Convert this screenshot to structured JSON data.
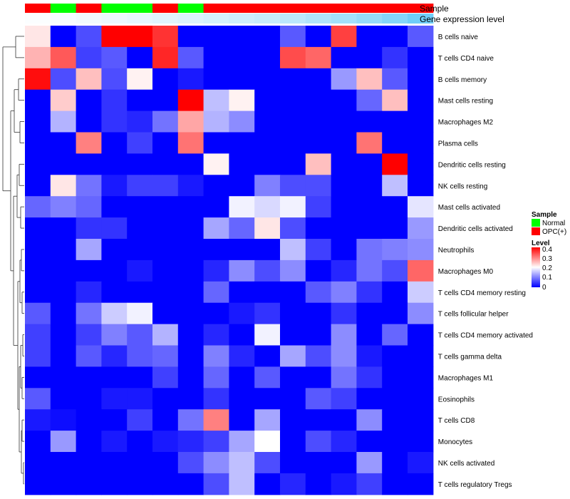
{
  "chart_data": {
    "type": "heatmap",
    "annotation_tracks": [
      "Sample",
      "Gene expression level"
    ],
    "sample_annotation": [
      "OPC(+)",
      "Normal",
      "OPC(+)",
      "Normal",
      "Normal",
      "OPC(+)",
      "Normal",
      "OPC(+)",
      "OPC(+)",
      "OPC(+)",
      "OPC(+)",
      "OPC(+)",
      "OPC(+)",
      "OPC(+)",
      "OPC(+)",
      "OPC(+)"
    ],
    "expression_level": [
      0.02,
      0.05,
      0.08,
      0.11,
      0.14,
      0.17,
      0.2,
      0.24,
      0.28,
      0.32,
      0.38,
      0.45,
      0.52,
      0.6,
      0.7,
      0.82
    ],
    "rows": [
      "B cells naive",
      "T cells CD4 naive",
      "B cells memory",
      "Mast cells resting",
      "Macrophages M2",
      "Plasma cells",
      "Dendritic cells resting",
      "NK cells resting",
      "Mast cells activated",
      "Dendritic cells activated",
      "Neutrophils",
      "Macrophages M0",
      "T cells CD4 memory resting",
      "T cells follicular helper",
      "T cells CD4 memory activated",
      "T cells gamma delta",
      "Macrophages M1",
      "Eosinophils",
      "T cells CD8",
      "Monocytes",
      "NK cells activated",
      "T cells regulatory  Tregs"
    ],
    "values": [
      [
        0.22,
        0.0,
        0.06,
        0.4,
        0.4,
        0.36,
        0.0,
        0.0,
        0.0,
        0.0,
        0.07,
        0.0,
        0.35,
        0.0,
        0.0,
        0.07
      ],
      [
        0.26,
        0.33,
        0.05,
        0.07,
        0.0,
        0.37,
        0.07,
        0.0,
        0.0,
        0.0,
        0.34,
        0.32,
        0.0,
        0.0,
        0.04,
        0.0
      ],
      [
        0.39,
        0.06,
        0.25,
        0.06,
        0.21,
        0.0,
        0.02,
        0.0,
        0.0,
        0.0,
        0.0,
        0.0,
        0.12,
        0.25,
        0.07,
        0.0
      ],
      [
        0.0,
        0.24,
        0.0,
        0.04,
        0.0,
        0.0,
        0.4,
        0.15,
        0.21,
        0.0,
        0.0,
        0.0,
        0.0,
        0.08,
        0.25,
        0.0
      ],
      [
        0.0,
        0.14,
        0.0,
        0.04,
        0.03,
        0.09,
        0.27,
        0.14,
        0.11,
        0.0,
        0.0,
        0.0,
        0.0,
        0.0,
        0.0,
        0.0
      ],
      [
        0.0,
        0.0,
        0.3,
        0.0,
        0.05,
        0.0,
        0.31,
        0.0,
        0.0,
        0.0,
        0.0,
        0.0,
        0.0,
        0.31,
        0.0,
        0.0
      ],
      [
        0.0,
        0.0,
        0.0,
        0.0,
        0.0,
        0.0,
        0.0,
        0.21,
        0.0,
        0.0,
        0.0,
        0.25,
        0.0,
        0.0,
        0.4,
        0.0
      ],
      [
        0.0,
        0.22,
        0.09,
        0.02,
        0.05,
        0.05,
        0.02,
        0.0,
        0.0,
        0.1,
        0.06,
        0.06,
        0.0,
        0.0,
        0.15,
        0.0
      ],
      [
        0.08,
        0.1,
        0.08,
        0.0,
        0.0,
        0.0,
        0.0,
        0.0,
        0.19,
        0.17,
        0.19,
        0.05,
        0.0,
        0.0,
        0.0,
        0.18
      ],
      [
        0.0,
        0.0,
        0.04,
        0.04,
        0.0,
        0.0,
        0.0,
        0.13,
        0.08,
        0.22,
        0.06,
        0.0,
        0.0,
        0.0,
        0.0,
        0.12
      ],
      [
        0.0,
        0.0,
        0.13,
        0.0,
        0.0,
        0.0,
        0.0,
        0.0,
        0.0,
        0.0,
        0.15,
        0.05,
        0.0,
        0.09,
        0.1,
        0.11
      ],
      [
        0.0,
        0.0,
        0.0,
        0.0,
        0.02,
        0.0,
        0.0,
        0.03,
        0.11,
        0.06,
        0.11,
        0.0,
        0.03,
        0.09,
        0.06,
        0.32
      ],
      [
        0.0,
        0.0,
        0.03,
        0.0,
        0.0,
        0.0,
        0.0,
        0.08,
        0.0,
        0.0,
        0.0,
        0.07,
        0.1,
        0.04,
        0.0,
        0.16
      ],
      [
        0.07,
        0.0,
        0.09,
        0.16,
        0.19,
        0.0,
        0.0,
        0.0,
        0.02,
        0.04,
        0.0,
        0.0,
        0.04,
        0.0,
        0.0,
        0.11
      ],
      [
        0.05,
        0.0,
        0.05,
        0.1,
        0.07,
        0.14,
        0.0,
        0.03,
        0.0,
        0.19,
        0.0,
        0.0,
        0.11,
        0.0,
        0.08,
        0.0
      ],
      [
        0.05,
        0.0,
        0.07,
        0.03,
        0.07,
        0.08,
        0.0,
        0.1,
        0.03,
        0.0,
        0.13,
        0.06,
        0.11,
        0.02,
        0.0,
        0.0
      ],
      [
        0.0,
        0.0,
        0.0,
        0.0,
        0.0,
        0.05,
        0.0,
        0.08,
        0.0,
        0.07,
        0.0,
        0.0,
        0.09,
        0.04,
        0.0,
        0.0
      ],
      [
        0.07,
        0.0,
        0.0,
        0.02,
        0.02,
        0.0,
        0.0,
        0.04,
        0.0,
        0.0,
        0.0,
        0.07,
        0.05,
        0.0,
        0.0,
        0.0
      ],
      [
        0.02,
        0.01,
        0.0,
        0.0,
        0.05,
        0.0,
        0.09,
        0.3,
        0.0,
        0.13,
        0.0,
        0.0,
        0.0,
        0.11,
        0.0,
        0.0
      ],
      [
        0.0,
        0.12,
        0.0,
        0.02,
        0.0,
        0.02,
        0.03,
        0.05,
        0.13,
        0.2,
        0.0,
        0.06,
        0.03,
        0.0,
        0.0,
        0.0
      ],
      [
        0.0,
        0.0,
        0.0,
        0.0,
        0.0,
        0.0,
        0.06,
        0.11,
        0.15,
        0.06,
        0.0,
        0.0,
        0.0,
        0.12,
        0.0,
        0.02
      ],
      [
        0.0,
        0.0,
        0.0,
        0.0,
        0.0,
        0.0,
        0.0,
        0.06,
        0.15,
        0.0,
        0.03,
        0.0,
        0.02,
        0.05,
        0.0,
        0.0
      ]
    ],
    "color_scale": {
      "low": "#0000ff",
      "mid": "#ffffff",
      "high": "#ff0000",
      "min": 0,
      "mid_value": 0.2,
      "max": 0.4
    },
    "legend_sample": {
      "title": "Sample",
      "entries": [
        {
          "label": "Normal",
          "color": "#00ff00"
        },
        {
          "label": "OPC(+)",
          "color": "#ff0000"
        }
      ]
    },
    "legend_level": {
      "title": "Level",
      "ticks": [
        "0.4",
        "0.3",
        "0.2",
        "0.1",
        "0"
      ]
    },
    "annotation_colors": {
      "Normal": "#00ff00",
      "OPC(+)": "#ff0000",
      "expr_low": "#ffffff",
      "expr_high": "#4fc3f7"
    },
    "row_dendrogram": true
  }
}
